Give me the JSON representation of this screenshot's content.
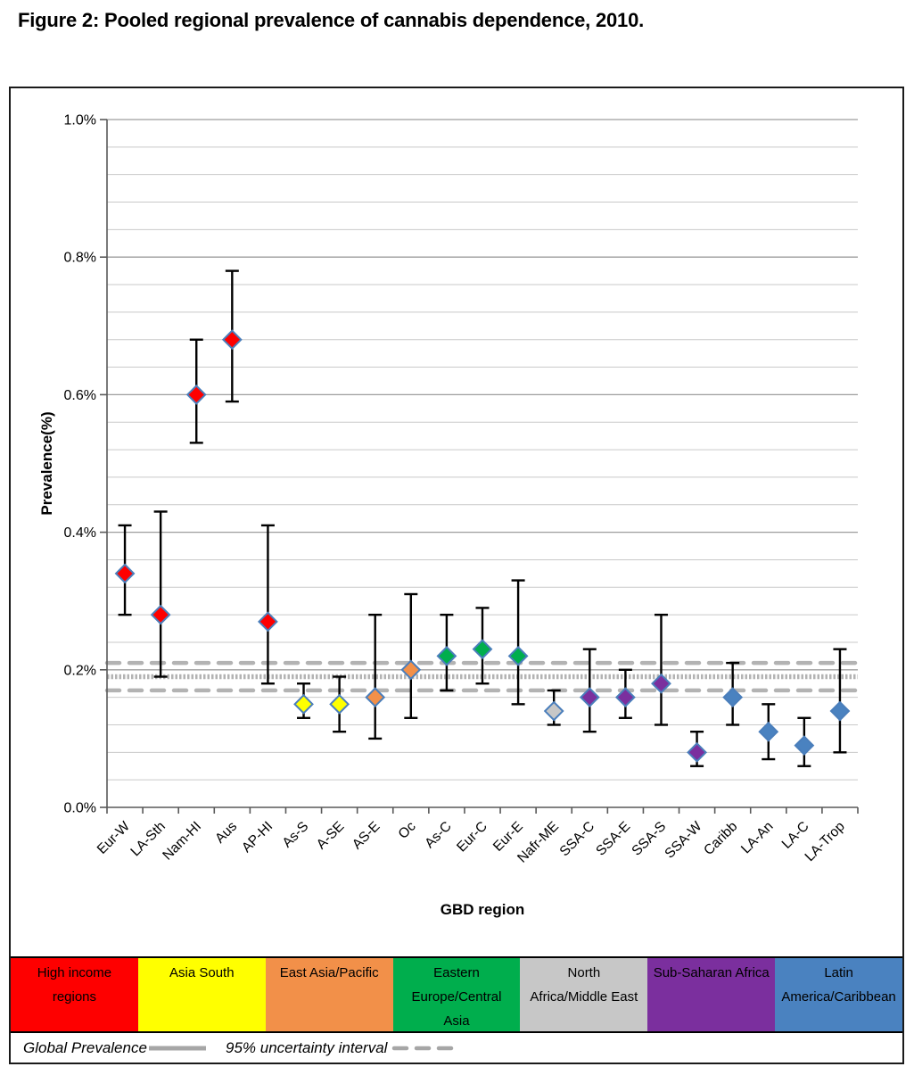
{
  "chart_data": {
    "type": "scatter",
    "title": "Figure 2: Pooled regional prevalence of cannabis dependence, 2010.",
    "xlabel": "GBD region",
    "ylabel": "Prevalence(%)",
    "ylim": [
      0,
      1.0
    ],
    "y_tick_step": 0.2,
    "y_minor_step": 0.04,
    "y_tick_labels": [
      "0.0%",
      "0.2%",
      "0.4%",
      "0.6%",
      "0.8%",
      "1.0%"
    ],
    "grid": true,
    "legend_position": "bottom",
    "categories": [
      "Eur-W",
      "LA-Sth",
      "Nam-HI",
      "Aus",
      "AP-HI",
      "As-S",
      "A-SE",
      "AS-E",
      "Oc",
      "As-C",
      "Eur-C",
      "Eur-E",
      "Nafr-ME",
      "SSA-C",
      "SSA-E",
      "SSA-S",
      "SSA-W",
      "Caribb",
      "LA-An",
      "LA-C",
      "LA-Trop"
    ],
    "points": [
      {
        "label": "Eur-W",
        "group": "high_income",
        "value": 0.34,
        "lower": 0.28,
        "upper": 0.41
      },
      {
        "label": "LA-Sth",
        "group": "high_income",
        "value": 0.28,
        "lower": 0.19,
        "upper": 0.43
      },
      {
        "label": "Nam-HI",
        "group": "high_income",
        "value": 0.6,
        "lower": 0.53,
        "upper": 0.68
      },
      {
        "label": "Aus",
        "group": "high_income",
        "value": 0.68,
        "lower": 0.59,
        "upper": 0.78
      },
      {
        "label": "AP-HI",
        "group": "high_income",
        "value": 0.27,
        "lower": 0.18,
        "upper": 0.41
      },
      {
        "label": "As-S",
        "group": "asia_south",
        "value": 0.15,
        "lower": 0.13,
        "upper": 0.18
      },
      {
        "label": "A-SE",
        "group": "asia_south",
        "value": 0.15,
        "lower": 0.11,
        "upper": 0.19
      },
      {
        "label": "AS-E",
        "group": "east_asia_pacific",
        "value": 0.16,
        "lower": 0.1,
        "upper": 0.28
      },
      {
        "label": "Oc",
        "group": "east_asia_pacific",
        "value": 0.2,
        "lower": 0.13,
        "upper": 0.31
      },
      {
        "label": "As-C",
        "group": "eastern_europe_central_asia",
        "value": 0.22,
        "lower": 0.17,
        "upper": 0.28
      },
      {
        "label": "Eur-C",
        "group": "eastern_europe_central_asia",
        "value": 0.23,
        "lower": 0.18,
        "upper": 0.29
      },
      {
        "label": "Eur-E",
        "group": "eastern_europe_central_asia",
        "value": 0.22,
        "lower": 0.15,
        "upper": 0.33
      },
      {
        "label": "Nafr-ME",
        "group": "north_africa_middle_east",
        "value": 0.14,
        "lower": 0.12,
        "upper": 0.17
      },
      {
        "label": "SSA-C",
        "group": "sub_saharan_africa",
        "value": 0.16,
        "lower": 0.11,
        "upper": 0.23
      },
      {
        "label": "SSA-E",
        "group": "sub_saharan_africa",
        "value": 0.16,
        "lower": 0.13,
        "upper": 0.2
      },
      {
        "label": "SSA-S",
        "group": "sub_saharan_africa",
        "value": 0.18,
        "lower": 0.12,
        "upper": 0.28
      },
      {
        "label": "SSA-W",
        "group": "sub_saharan_africa",
        "value": 0.08,
        "lower": 0.06,
        "upper": 0.11
      },
      {
        "label": "Caribb",
        "group": "latin_america_caribbean",
        "value": 0.16,
        "lower": 0.12,
        "upper": 0.21
      },
      {
        "label": "LA-An",
        "group": "latin_america_caribbean",
        "value": 0.11,
        "lower": 0.07,
        "upper": 0.15
      },
      {
        "label": "LA-C",
        "group": "latin_america_caribbean",
        "value": 0.09,
        "lower": 0.06,
        "upper": 0.13
      },
      {
        "label": "LA-Trop",
        "group": "latin_america_caribbean",
        "value": 0.14,
        "lower": 0.08,
        "upper": 0.23
      }
    ],
    "global_prevalence": {
      "label": "Global Prevalence",
      "value": 0.19
    },
    "uncertainty_interval": {
      "label": "95% uncertainty interval",
      "values": [
        0.17,
        0.21
      ]
    },
    "groups": [
      {
        "id": "high_income",
        "label": "High income regions",
        "lines": [
          "High income",
          "regions"
        ],
        "color": "#fe0000"
      },
      {
        "id": "asia_south",
        "label": "Asia South",
        "lines": [
          "Asia South"
        ],
        "color": "#ffff00"
      },
      {
        "id": "east_asia_pacific",
        "label": "East Asia/Pacific",
        "lines": [
          "East Asia/Pacific"
        ],
        "color": "#f29049"
      },
      {
        "id": "eastern_europe_central_asia",
        "label": "Eastern Europe/Central Asia",
        "lines": [
          "Eastern",
          "Europe/Central",
          "Asia"
        ],
        "color": "#00ae4d"
      },
      {
        "id": "north_africa_middle_east",
        "label": "North Africa/Middle East",
        "lines": [
          "North",
          "Africa/Middle East"
        ],
        "color": "#c7c7c7"
      },
      {
        "id": "sub_saharan_africa",
        "label": "Sub-Saharan Africa",
        "lines": [
          "Sub-Saharan Africa"
        ],
        "color": "#7b2f9e"
      },
      {
        "id": "latin_america_caribbean",
        "label": "Latin America/Caribbean",
        "lines": [
          "Latin",
          "America/Caribbean"
        ],
        "color": "#4a82c0"
      }
    ],
    "colors": {
      "marker_border": "#4a7ebb",
      "error_bar": "#000000",
      "reference_line": "#b3b3b3",
      "grid_minor": "#c9c9c9",
      "grid_major": "#9e9e9e",
      "axis": "#595959"
    }
  }
}
